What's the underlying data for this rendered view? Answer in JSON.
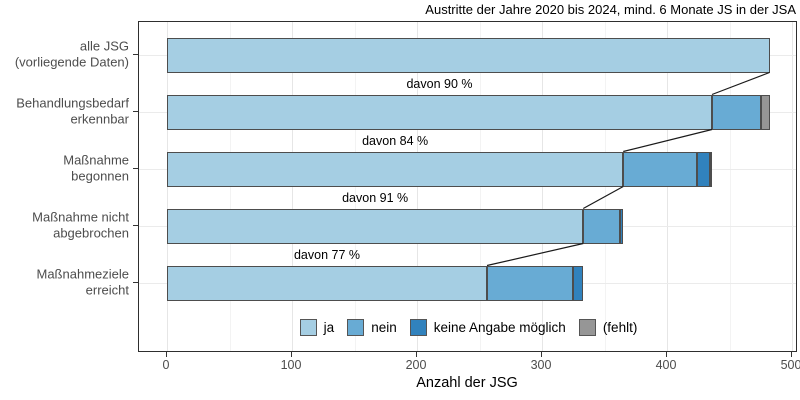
{
  "chart_data": {
    "type": "bar",
    "orientation": "horizontal-stacked",
    "title": "Austritte der Jahre 2020 bis 2024, mind. 6 Monate JS in der JSA",
    "xlabel": "Anzahl der JSG",
    "x_ticks": [
      0,
      100,
      200,
      300,
      400,
      500
    ],
    "x_minor_ticks": [
      50,
      150,
      250,
      350,
      450
    ],
    "xlim": [
      0,
      504
    ],
    "grid": true,
    "legend_position": "bottom-inside",
    "bar_outline_color": "#4d4d4d",
    "connector_color": "#1a1a1a",
    "legend": [
      {
        "key": "ja",
        "label": "ja",
        "color": "#a5cee3"
      },
      {
        "key": "nein",
        "label": "nein",
        "color": "#68abd4"
      },
      {
        "key": "keine_angabe",
        "label": "keine Angabe möglich",
        "color": "#3182bd"
      },
      {
        "key": "fehlt",
        "label": "(fehlt)",
        "color": "#969696"
      }
    ],
    "rows": [
      {
        "label_lines": [
          "alle JSG",
          "(vorliegende Daten)"
        ],
        "ja": 482,
        "nein": 0,
        "keine_angabe": 0,
        "fehlt": 0,
        "annotation": ""
      },
      {
        "label_lines": [
          "Behandlungsbedarf",
          "erkennbar"
        ],
        "ja": 436,
        "nein": 39,
        "keine_angabe": 0,
        "fehlt": 7,
        "annotation": "davon 90 %"
      },
      {
        "label_lines": [
          "Maßnahme",
          "begonnen"
        ],
        "ja": 365,
        "nein": 59,
        "keine_angabe": 10,
        "fehlt": 2,
        "annotation": "davon 84 %"
      },
      {
        "label_lines": [
          "Maßnahme nicht",
          "abgebrochen"
        ],
        "ja": 333,
        "nein": 29,
        "keine_angabe": 3,
        "fehlt": 0,
        "annotation": "davon 91 %"
      },
      {
        "label_lines": [
          "Maßnahmeziele",
          "erreicht"
        ],
        "ja": 256,
        "nein": 69,
        "keine_angabe": 8,
        "fehlt": 0,
        "annotation": "davon 77 %"
      }
    ]
  }
}
